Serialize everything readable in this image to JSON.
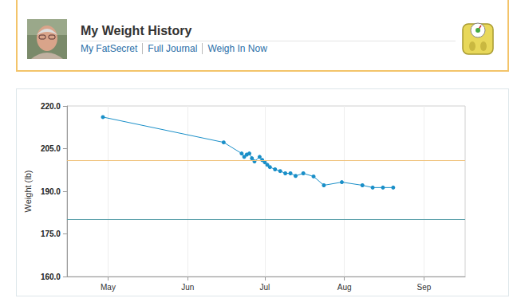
{
  "header": {
    "title": "My Weight History",
    "links": [
      "My FatSecret",
      "Full Journal",
      "Weigh In Now"
    ]
  },
  "chart_data": {
    "type": "line",
    "ylabel": "Weight (lb)",
    "x": [
      119,
      166,
      173,
      174,
      175,
      176,
      177,
      178,
      180,
      181,
      182,
      183,
      184,
      186,
      188,
      190,
      192,
      194,
      197,
      201,
      205,
      212,
      220,
      224,
      228,
      232
    ],
    "values": [
      216.1,
      207.2,
      203.3,
      202.1,
      202.9,
      203.3,
      201.6,
      200.5,
      202.1,
      201.0,
      200.2,
      199.3,
      198.5,
      197.7,
      197.1,
      196.3,
      196.3,
      195.4,
      196.3,
      195.2,
      192.1,
      193.2,
      192.1,
      191.3,
      191.3,
      191.3
    ],
    "color": "#1a8fc8",
    "marker": "circle",
    "line_style": "solid",
    "xlim": [
      105,
      260
    ],
    "xticks": [
      {
        "value": 121,
        "label": "May"
      },
      {
        "value": 152,
        "label": "Jun"
      },
      {
        "value": 182,
        "label": "Jul"
      },
      {
        "value": 213,
        "label": "Aug"
      },
      {
        "value": 244,
        "label": "Sep"
      }
    ],
    "ylim": [
      160,
      220
    ],
    "yticks": [
      {
        "value": 160,
        "label": "160.0"
      },
      {
        "value": 175,
        "label": "175.0"
      },
      {
        "value": 190,
        "label": "190.0"
      },
      {
        "value": 205,
        "label": "205.0"
      },
      {
        "value": 220,
        "label": "220.0"
      }
    ],
    "reference_lines": [
      {
        "value": 201,
        "color": "#f0c27a"
      },
      {
        "value": 180,
        "color": "#5a9faa"
      }
    ],
    "grid": true
  }
}
